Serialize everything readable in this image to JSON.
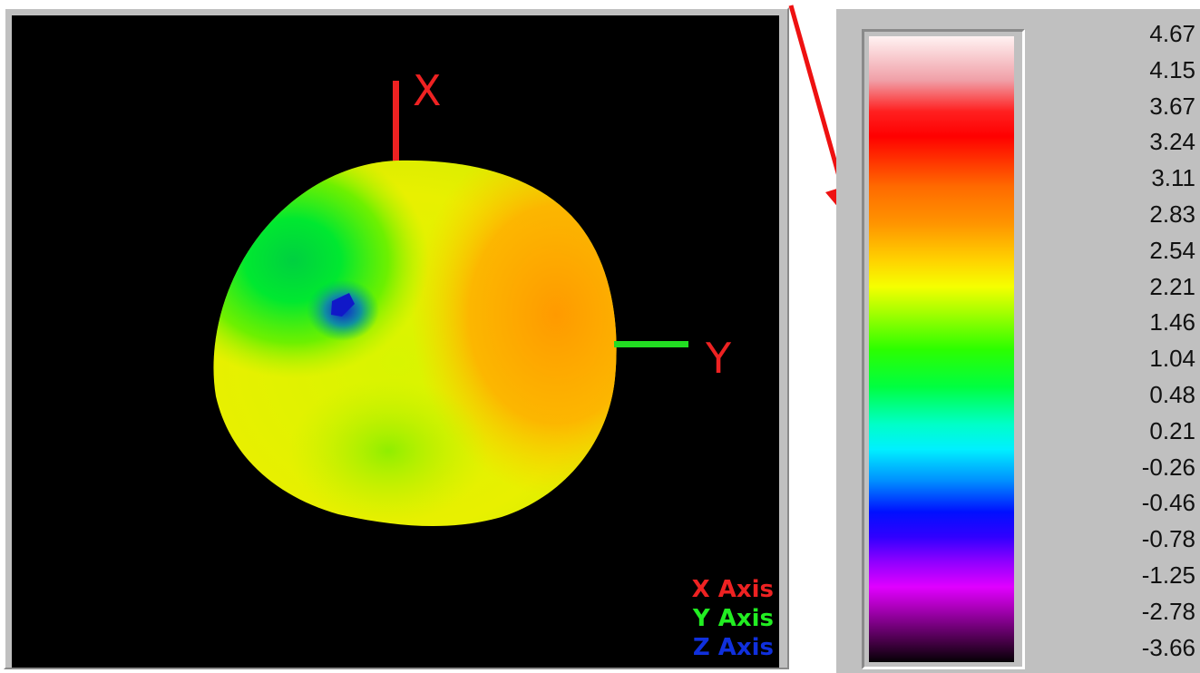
{
  "viewport": {
    "axis_labels": {
      "x": "X",
      "y": "Y"
    },
    "legend": [
      {
        "label": "X Axis",
        "color": "#ee2222"
      },
      {
        "label": "Y Axis",
        "color": "#22ee22"
      },
      {
        "label": "Z Axis",
        "color": "#1030dd"
      }
    ],
    "background": "#000000"
  },
  "color_scale": {
    "values": [
      "4.67",
      "4.15",
      "3.67",
      "3.24",
      "3.11",
      "2.83",
      "2.54",
      "2.21",
      "1.46",
      "1.04",
      "0.48",
      "0.21",
      "-0.26",
      "-0.46",
      "-0.78",
      "-1.25",
      "-2.78",
      "-3.66"
    ]
  },
  "annotation": {
    "arrow_color": "#ee1111"
  }
}
